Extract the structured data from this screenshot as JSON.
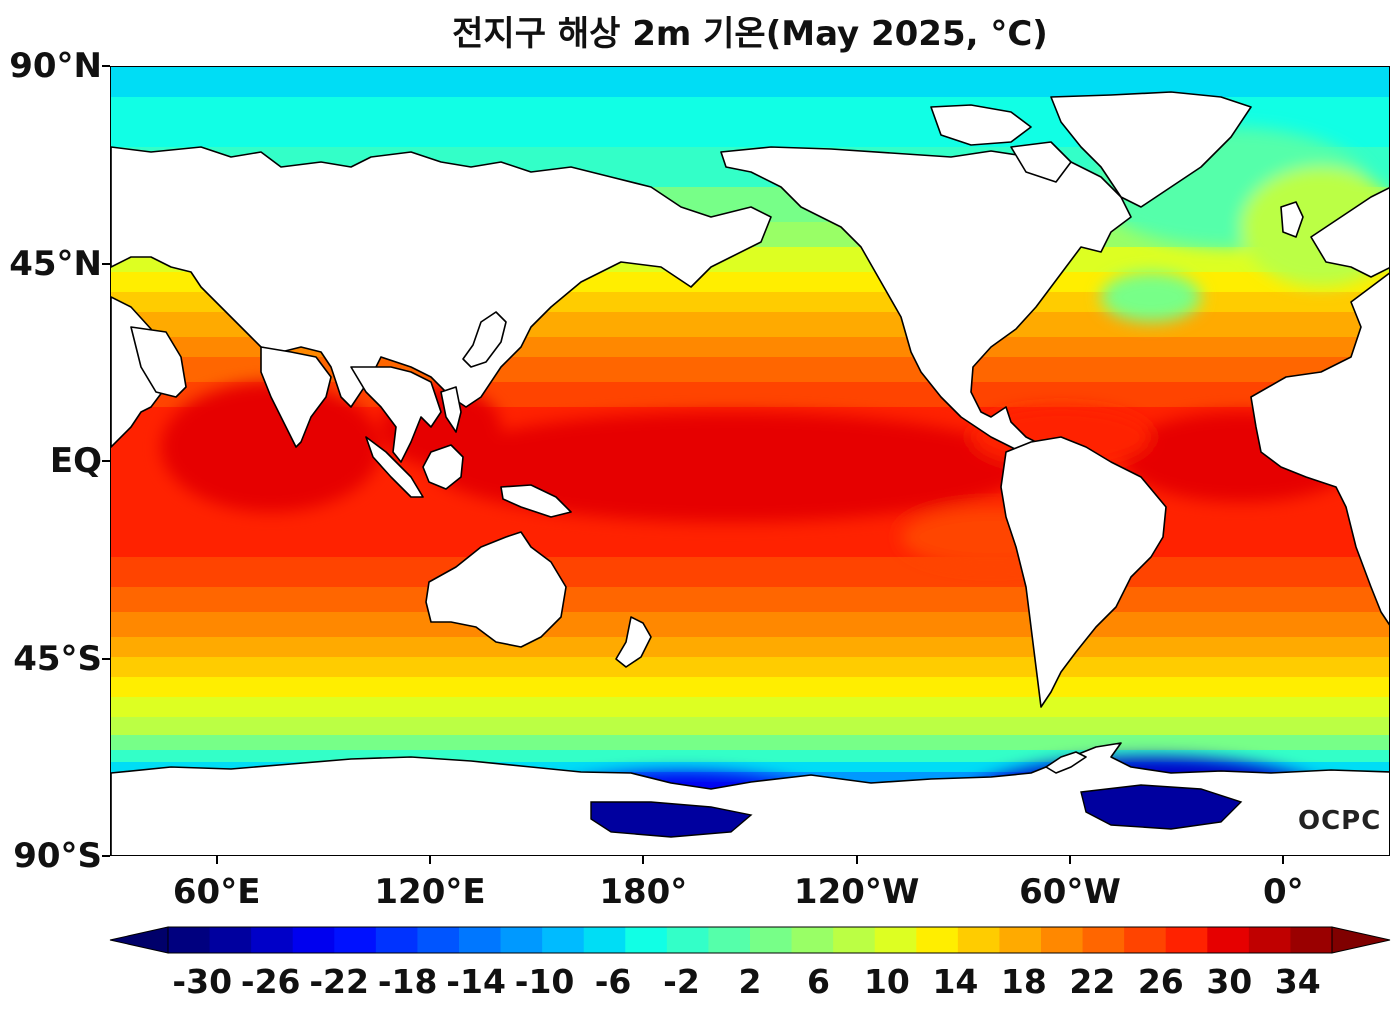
{
  "title": "전지구 해상 2m 기온(May 2025, °C)",
  "credit": "OCPC",
  "map": {
    "projection": "equirectangular",
    "lon_range": [
      30,
      390
    ],
    "lat_range": [
      -90,
      90
    ],
    "latitude_labels": [
      {
        "lat": 90,
        "text": "90°N"
      },
      {
        "lat": 45,
        "text": "45°N"
      },
      {
        "lat": 0,
        "text": "EQ"
      },
      {
        "lat": -45,
        "text": "45°S"
      },
      {
        "lat": -90,
        "text": "90°S"
      }
    ],
    "longitude_labels": [
      {
        "lon": 60,
        "text": "60°E"
      },
      {
        "lon": 120,
        "text": "120°E"
      },
      {
        "lon": 180,
        "text": "180°"
      },
      {
        "lon": 240,
        "text": "120°W"
      },
      {
        "lon": 300,
        "text": "60°W"
      },
      {
        "lon": 360,
        "text": "0°"
      }
    ],
    "colorbar": {
      "min": -32,
      "max": 36,
      "step": 2,
      "extend": "both",
      "tick_values": [
        -30,
        -26,
        -22,
        -18,
        -14,
        -10,
        -6,
        -2,
        2,
        6,
        10,
        14,
        18,
        22,
        26,
        30,
        34
      ],
      "tick_labels": [
        "-30",
        "-26",
        "-22",
        "-18",
        "-14",
        "-10",
        "-6",
        "-2",
        "2",
        "6",
        "10",
        "14",
        "18",
        "22",
        "26",
        "30",
        "34"
      ],
      "colors": [
        "#00007f",
        "#00009f",
        "#0000c8",
        "#0000ef",
        "#0011ff",
        "#0033ff",
        "#0055ff",
        "#0077ff",
        "#0099ff",
        "#00bbff",
        "#00ddf5",
        "#11ffe5",
        "#33ffc8",
        "#55ffaa",
        "#77ff88",
        "#99ff66",
        "#bbff44",
        "#ddff22",
        "#ffee00",
        "#ffcc00",
        "#ffaa00",
        "#ff8800",
        "#ff6600",
        "#ff4400",
        "#ff2200",
        "#e60000",
        "#c00000",
        "#9a0000"
      ],
      "under_color": "#00006a",
      "over_color": "#800000"
    }
  }
}
